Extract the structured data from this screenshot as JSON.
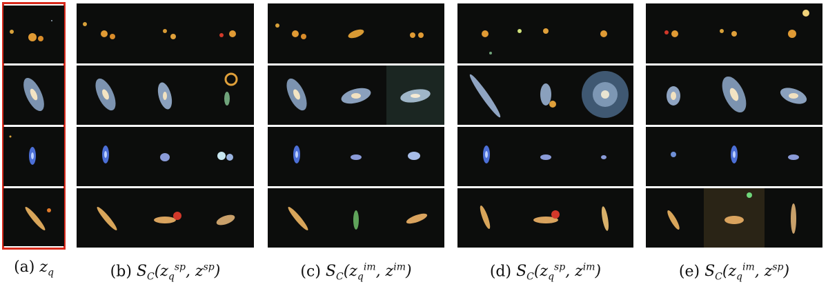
{
  "figure": {
    "rows": [
      "row-1",
      "row-2",
      "row-3",
      "row-4"
    ],
    "panels": [
      {
        "id": "a",
        "caption_label": "(a)",
        "caption_math": "z_q",
        "columns": 1,
        "highlight": true,
        "highlight_color": "#d92a1c"
      },
      {
        "id": "b",
        "caption_label": "(b)",
        "caption_math": "S_C(z_q^sp, z^sp)",
        "columns": 3,
        "highlight": false
      },
      {
        "id": "c",
        "caption_label": "(c)",
        "caption_math": "S_C(z_q^im, z^im)",
        "columns": 3,
        "highlight": false
      },
      {
        "id": "d",
        "caption_label": "(d)",
        "caption_math": "S_C(z_q^sp, z^im)",
        "columns": 3,
        "highlight": false
      },
      {
        "id": "e",
        "caption_label": "(e)",
        "caption_math": "S_C(z_q^im, z^sp)",
        "columns": 3,
        "highlight": false
      }
    ]
  },
  "colors": {
    "background_sky": "#0c0d0c",
    "highlight_border": "#d92a1c",
    "separator": "#ffffff"
  }
}
